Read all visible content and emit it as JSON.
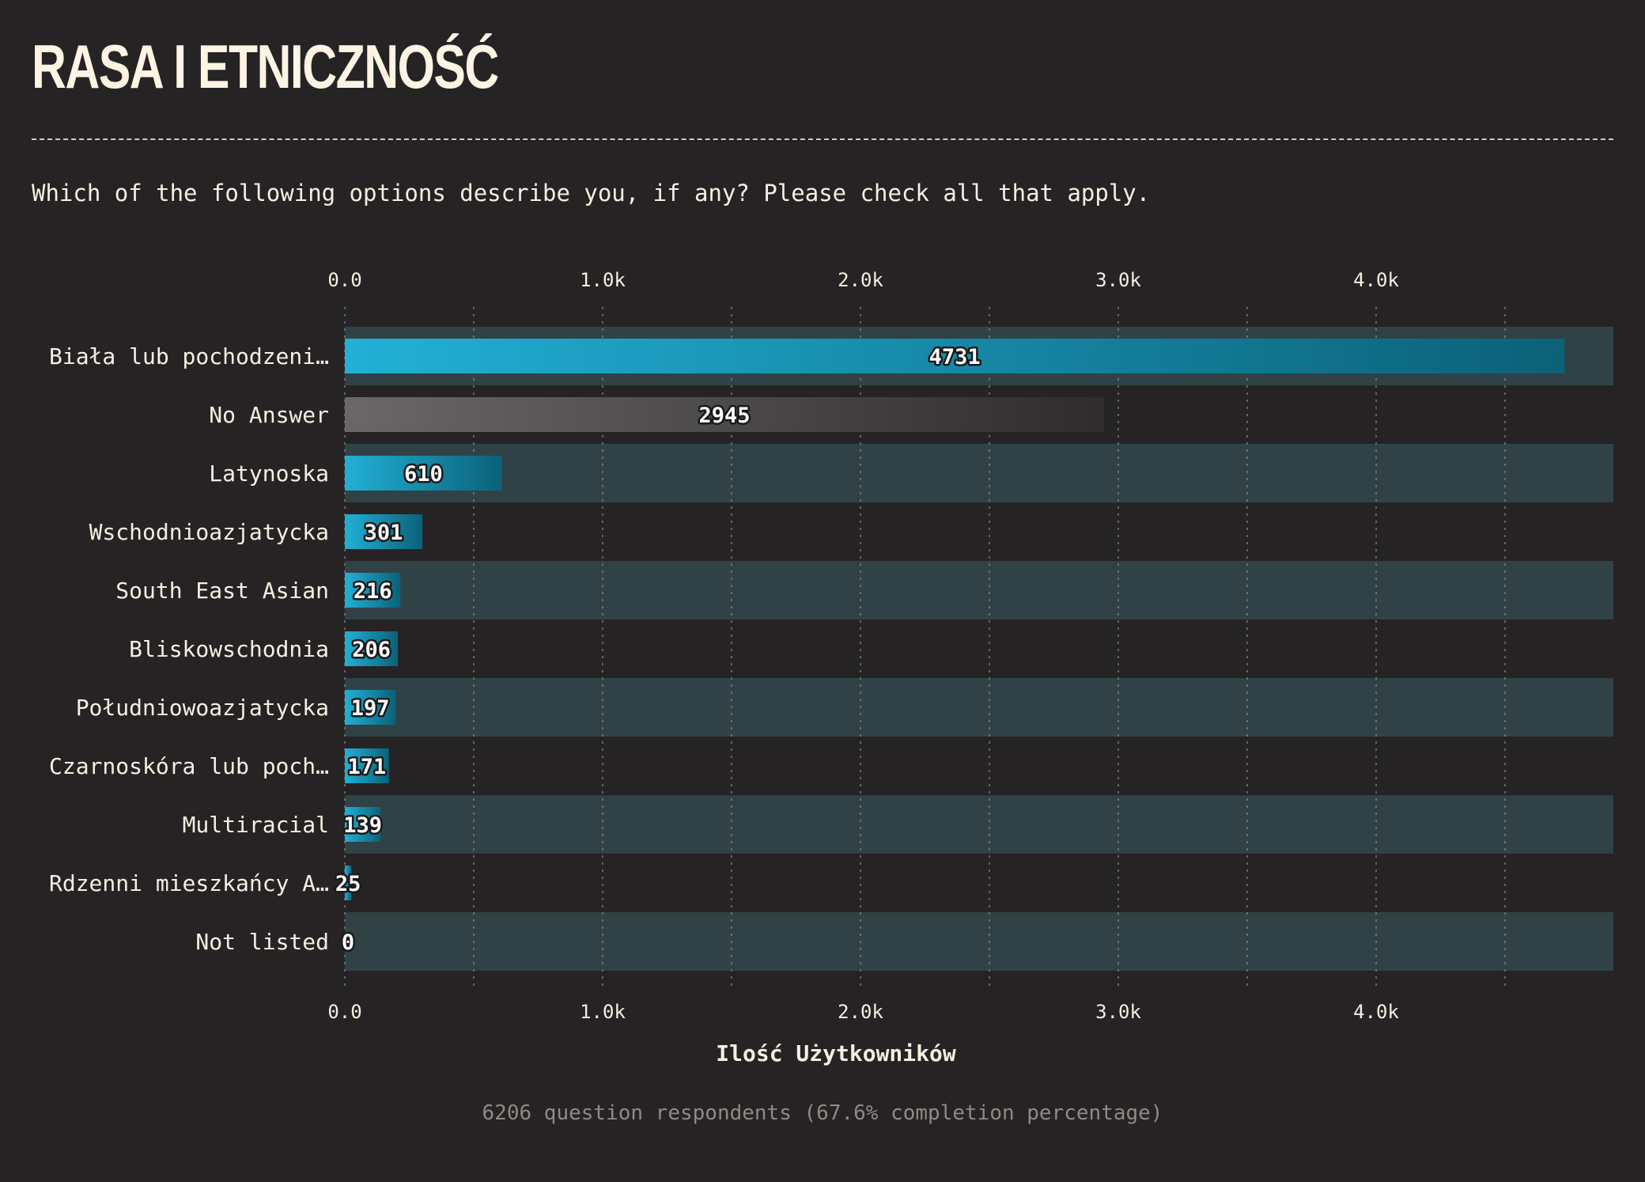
{
  "page": {
    "title": "RASA I ETNICZNOŚĆ",
    "question": "Which of the following options describe you, if any? Please check all that apply.",
    "footer": "6206 question respondents (67.6% completion percentage)"
  },
  "colors": {
    "background": "#262324",
    "row_band": "#304246",
    "bar_start": "#22b0d6",
    "bar_end": "#0b6178",
    "no_answer_start": "#6a6768",
    "no_answer_end": "#2f2c2d",
    "text": "#f6efe2"
  },
  "chart_data": {
    "type": "bar",
    "orientation": "horizontal",
    "categories": [
      "Biała lub pochodzeni…",
      "No Answer",
      "Latynoska",
      "Wschodnioazjatycka",
      "South East Asian",
      "Bliskowschodnia",
      "Południowoazjatycka",
      "Czarnoskóra lub poch…",
      "Multiracial",
      "Rdzenni mieszkańcy A…",
      "Not listed"
    ],
    "values": [
      4731,
      2945,
      610,
      301,
      216,
      206,
      197,
      171,
      139,
      25,
      0
    ],
    "xlabel": "Ilość Użytkowników",
    "xlim": [
      0,
      4920
    ],
    "x_ticks": [
      0,
      1000,
      2000,
      3000,
      4000
    ],
    "x_tick_labels": [
      "0.0",
      "1.0k",
      "2.0k",
      "3.0k",
      "4.0k"
    ],
    "minor_gridlines": [
      500,
      1500,
      2500,
      3500,
      4500
    ],
    "grid": true,
    "axis_labels_top_and_bottom": true,
    "highlight_category": "No Answer"
  }
}
